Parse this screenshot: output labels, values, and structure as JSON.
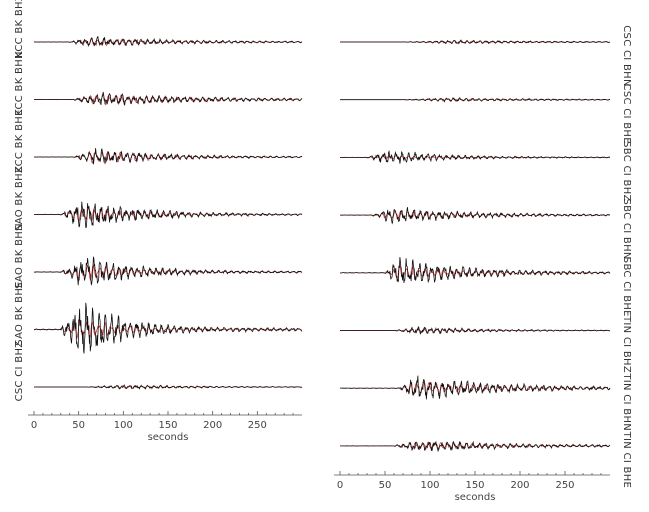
{
  "chart_data": [
    {
      "type": "line",
      "xlabel": "seconds",
      "xlim": [
        0,
        300
      ],
      "xticks": [
        0,
        50,
        100,
        150,
        200,
        250
      ],
      "colors": {
        "observed": "#111111",
        "synthetic": "#d62020"
      },
      "traces": [
        {
          "label": "KCC BK BHZ",
          "amp": 0.35,
          "synth": 0.3,
          "onset": 40,
          "peak": 65,
          "decay": 90,
          "noise": 0.08
        },
        {
          "label": "KCC BK BHN",
          "amp": 0.45,
          "synth": 0.4,
          "onset": 45,
          "peak": 72,
          "decay": 100,
          "noise": 0.08
        },
        {
          "label": "KCC BK BHE",
          "amp": 0.55,
          "synth": 0.5,
          "onset": 45,
          "peak": 70,
          "decay": 70,
          "noise": 0.05
        },
        {
          "label": "SAO BK BHZ",
          "amp": 1.0,
          "synth": 0.55,
          "onset": 30,
          "peak": 55,
          "decay": 60,
          "noise": 0.05
        },
        {
          "label": "SAO BK BHN",
          "amp": 1.1,
          "synth": 0.6,
          "onset": 30,
          "peak": 58,
          "decay": 55,
          "noise": 0.05
        },
        {
          "label": "SAO BK BHE",
          "amp": 2.2,
          "synth": 0.8,
          "onset": 30,
          "peak": 55,
          "decay": 40,
          "noise": 0.05
        },
        {
          "label": "CSC CI BHZ",
          "amp": 0.15,
          "synth": 0.12,
          "onset": 60,
          "peak": 100,
          "decay": 90,
          "noise": 0.06
        }
      ]
    },
    {
      "type": "line",
      "xlabel": "seconds",
      "xlim": [
        0,
        300
      ],
      "xticks": [
        0,
        50,
        100,
        150,
        200,
        250
      ],
      "colors": {
        "observed": "#111111",
        "synthetic": "#d62020"
      },
      "traces": [
        {
          "label": "CSC CI BHN",
          "amp": 0.12,
          "synth": 0.12,
          "onset": 70,
          "peak": 130,
          "decay": 120,
          "noise": 0.05
        },
        {
          "label": "CSC CI BHE",
          "amp": 0.12,
          "synth": 0.12,
          "onset": 70,
          "peak": 120,
          "decay": 120,
          "noise": 0.05
        },
        {
          "label": "SBC CI BHZ",
          "amp": 0.5,
          "synth": 0.15,
          "onset": 30,
          "peak": 55,
          "decay": 60,
          "noise": 0.05
        },
        {
          "label": "SBC CI BHN",
          "amp": 0.55,
          "synth": 0.35,
          "onset": 35,
          "peak": 60,
          "decay": 80,
          "noise": 0.05
        },
        {
          "label": "SBC CI BHE",
          "amp": 1.0,
          "synth": 0.5,
          "onset": 50,
          "peak": 65,
          "decay": 70,
          "noise": 0.05
        },
        {
          "label": "TIN CI BHZ",
          "amp": 0.25,
          "synth": 0.15,
          "onset": 60,
          "peak": 85,
          "decay": 80,
          "noise": 0.04
        },
        {
          "label": "TIN CI BHN",
          "amp": 0.8,
          "synth": 0.55,
          "onset": 65,
          "peak": 85,
          "decay": 90,
          "noise": 0.05
        },
        {
          "label": "TIN CI BHE",
          "amp": 0.4,
          "synth": 0.3,
          "onset": 60,
          "peak": 85,
          "decay": 110,
          "noise": 0.05
        }
      ]
    }
  ]
}
